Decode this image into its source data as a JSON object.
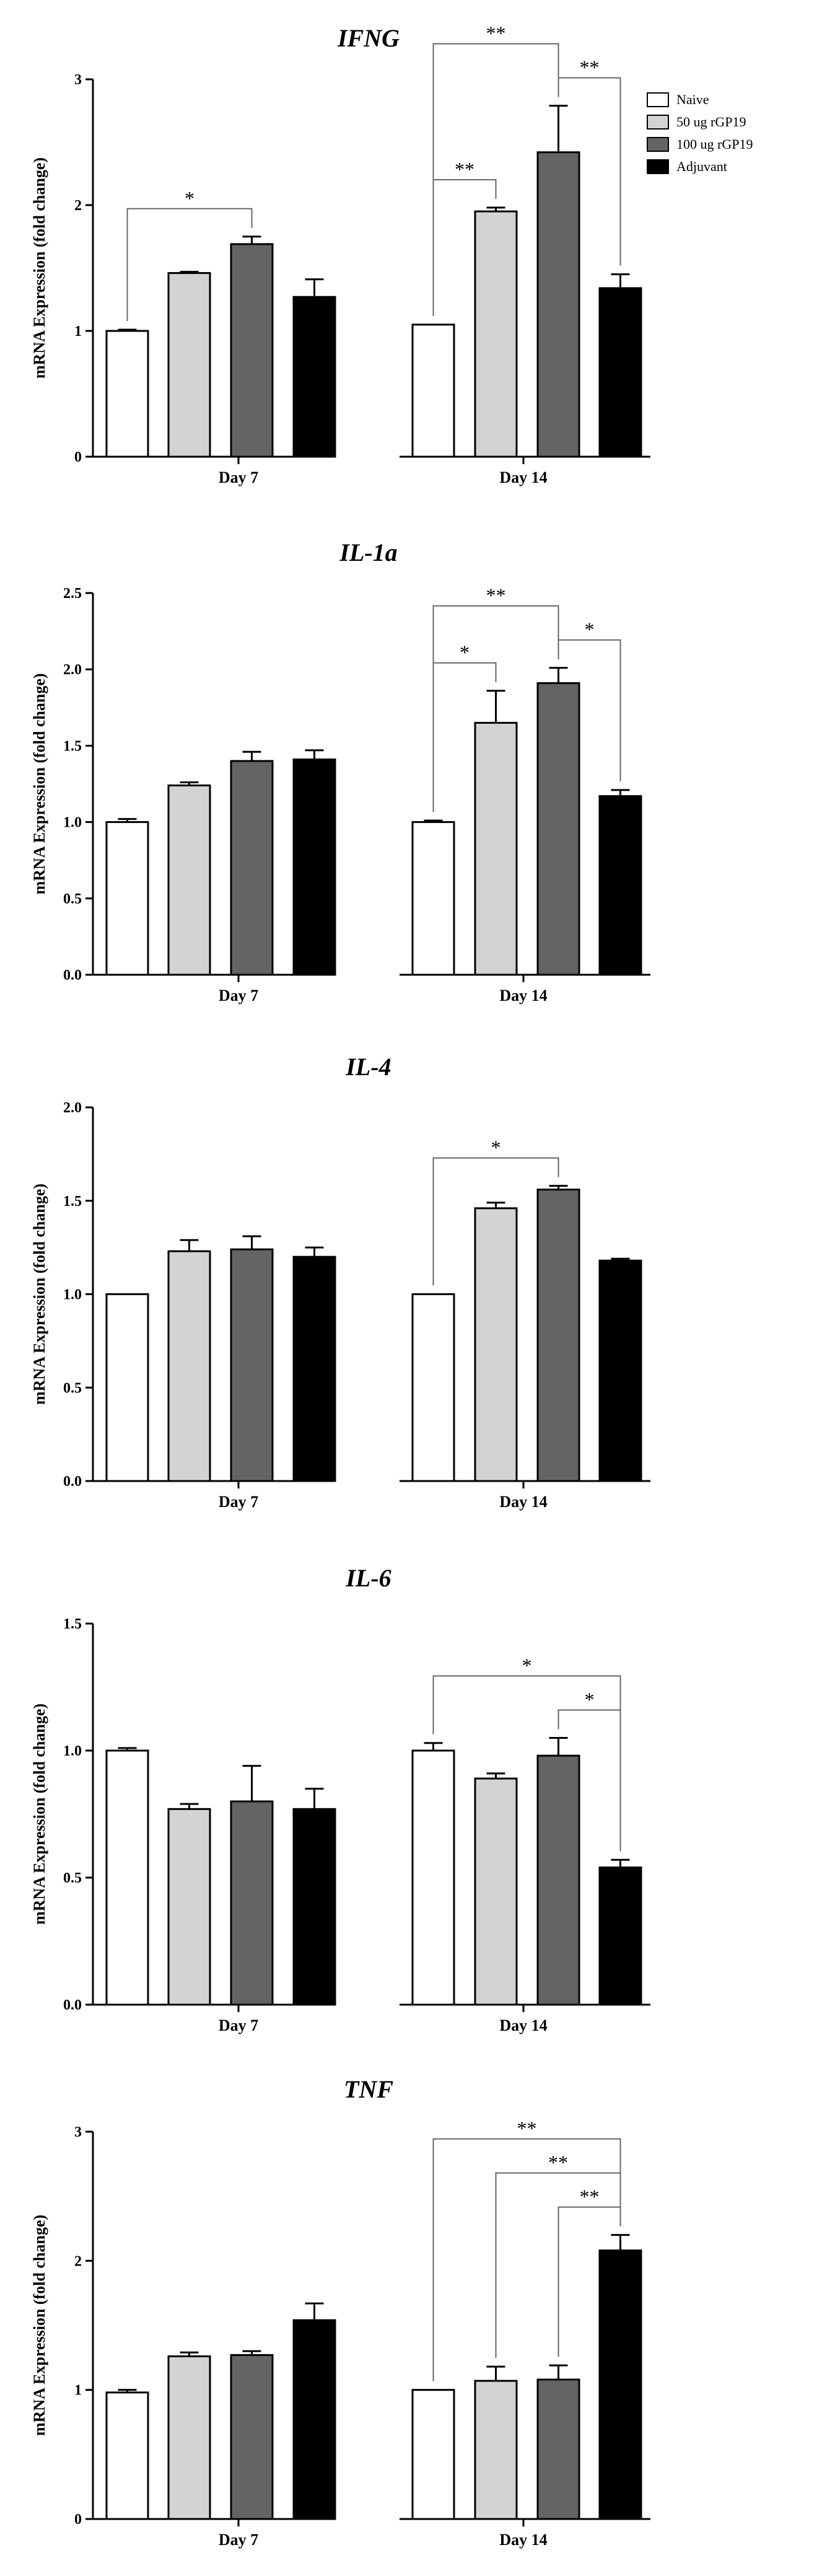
{
  "legend": [
    "Naive",
    "50 ug rGP19",
    "100 ug rGP19",
    "Adjuvant"
  ],
  "series_colors": [
    "#ffffff",
    "#d3d3d3",
    "#646464",
    "#000000"
  ],
  "chart_data": [
    {
      "type": "bar",
      "title": "IFNG",
      "ylabel": "mRNA Expression (fold change)",
      "categories": [
        "Day 7",
        "Day 14"
      ],
      "ylim": [
        0,
        3
      ],
      "yticks": [
        "0",
        "1",
        "2",
        "3"
      ],
      "series": [
        {
          "name": "Naive",
          "values": [
            1.0,
            1.05
          ],
          "errors": [
            0.01,
            0.0
          ]
        },
        {
          "name": "50 ug rGP19",
          "values": [
            1.46,
            1.95
          ],
          "errors": [
            0.01,
            0.03
          ]
        },
        {
          "name": "100 ug rGP19",
          "values": [
            1.69,
            2.42
          ],
          "errors": [
            0.06,
            0.37
          ]
        },
        {
          "name": "Adjuvant",
          "values": [
            1.27,
            1.34
          ],
          "errors": [
            0.14,
            0.11
          ]
        }
      ],
      "annotations": [
        {
          "from": [
            0,
            0
          ],
          "to": [
            0,
            2
          ],
          "label": "*"
        },
        {
          "from": [
            1,
            0
          ],
          "to": [
            1,
            1
          ],
          "label": "**"
        },
        {
          "from": [
            1,
            0
          ],
          "to": [
            1,
            2
          ],
          "label": "**"
        },
        {
          "from": [
            1,
            2
          ],
          "to": [
            1,
            3
          ],
          "label": "**"
        }
      ]
    },
    {
      "type": "bar",
      "title": "IL-1a",
      "ylabel": "mRNA Expression (fold change)",
      "categories": [
        "Day 7",
        "Day 14"
      ],
      "ylim": [
        0,
        2.5
      ],
      "yticks": [
        "0.0",
        "0.5",
        "1.0",
        "1.5",
        "2.0",
        "2.5"
      ],
      "series": [
        {
          "name": "Naive",
          "values": [
            1.0,
            1.0
          ],
          "errors": [
            0.02,
            0.01
          ]
        },
        {
          "name": "50 ug rGP19",
          "values": [
            1.24,
            1.65
          ],
          "errors": [
            0.02,
            0.21
          ]
        },
        {
          "name": "100 ug rGP19",
          "values": [
            1.4,
            1.91
          ],
          "errors": [
            0.06,
            0.1
          ]
        },
        {
          "name": "Adjuvant",
          "values": [
            1.41,
            1.17
          ],
          "errors": [
            0.06,
            0.04
          ]
        }
      ],
      "annotations": [
        {
          "from": [
            1,
            0
          ],
          "to": [
            1,
            1
          ],
          "label": "*"
        },
        {
          "from": [
            1,
            0
          ],
          "to": [
            1,
            2
          ],
          "label": "**"
        },
        {
          "from": [
            1,
            2
          ],
          "to": [
            1,
            3
          ],
          "label": "*"
        }
      ]
    },
    {
      "type": "bar",
      "title": "IL-4",
      "ylabel": "mRNA Expression (fold change)",
      "categories": [
        "Day 7",
        "Day 14"
      ],
      "ylim": [
        0,
        2.0
      ],
      "yticks": [
        "0.0",
        "0.5",
        "1.0",
        "1.5",
        "2.0"
      ],
      "series": [
        {
          "name": "Naive",
          "values": [
            1.0,
            1.0
          ],
          "errors": [
            0.0,
            0.0
          ]
        },
        {
          "name": "50 ug rGP19",
          "values": [
            1.23,
            1.46
          ],
          "errors": [
            0.06,
            0.03
          ]
        },
        {
          "name": "100 ug rGP19",
          "values": [
            1.24,
            1.56
          ],
          "errors": [
            0.07,
            0.02
          ]
        },
        {
          "name": "Adjuvant",
          "values": [
            1.2,
            1.18
          ],
          "errors": [
            0.05,
            0.01
          ]
        }
      ],
      "annotations": [
        {
          "from": [
            1,
            0
          ],
          "to": [
            1,
            2
          ],
          "label": "*"
        }
      ]
    },
    {
      "type": "bar",
      "title": "IL-6",
      "ylabel": "mRNA Expression (fold change)",
      "categories": [
        "Day 7",
        "Day 14"
      ],
      "ylim": [
        0,
        1.5
      ],
      "yticks": [
        "0.0",
        "0.5",
        "1.0",
        "1.5"
      ],
      "series": [
        {
          "name": "Naive",
          "values": [
            1.0,
            1.0
          ],
          "errors": [
            0.01,
            0.03
          ]
        },
        {
          "name": "50 ug rGP19",
          "values": [
            0.77,
            0.89
          ],
          "errors": [
            0.02,
            0.02
          ]
        },
        {
          "name": "100 ug rGP19",
          "values": [
            0.8,
            0.98
          ],
          "errors": [
            0.14,
            0.07
          ]
        },
        {
          "name": "Adjuvant",
          "values": [
            0.77,
            0.54
          ],
          "errors": [
            0.08,
            0.03
          ]
        }
      ],
      "annotations": [
        {
          "from": [
            1,
            0
          ],
          "to": [
            1,
            3
          ],
          "label": "*"
        },
        {
          "from": [
            1,
            2
          ],
          "to": [
            1,
            3
          ],
          "label": "*"
        }
      ]
    },
    {
      "type": "bar",
      "title": "TNF",
      "ylabel": "mRNA Expression (fold change)",
      "categories": [
        "Day 7",
        "Day 14"
      ],
      "ylim": [
        0,
        3
      ],
      "yticks": [
        "0",
        "1",
        "2",
        "3"
      ],
      "series": [
        {
          "name": "Naive",
          "values": [
            0.98,
            1.0
          ],
          "errors": [
            0.02,
            0.0
          ]
        },
        {
          "name": "50 ug rGP19",
          "values": [
            1.26,
            1.07
          ],
          "errors": [
            0.03,
            0.11
          ]
        },
        {
          "name": "100 ug rGP19",
          "values": [
            1.27,
            1.08
          ],
          "errors": [
            0.03,
            0.11
          ]
        },
        {
          "name": "Adjuvant",
          "values": [
            1.54,
            2.08
          ],
          "errors": [
            0.13,
            0.12
          ]
        }
      ],
      "annotations": [
        {
          "from": [
            1,
            0
          ],
          "to": [
            1,
            3
          ],
          "label": "**"
        },
        {
          "from": [
            1,
            1
          ],
          "to": [
            1,
            3
          ],
          "label": "**"
        },
        {
          "from": [
            1,
            2
          ],
          "to": [
            1,
            3
          ],
          "label": "**"
        }
      ]
    }
  ]
}
